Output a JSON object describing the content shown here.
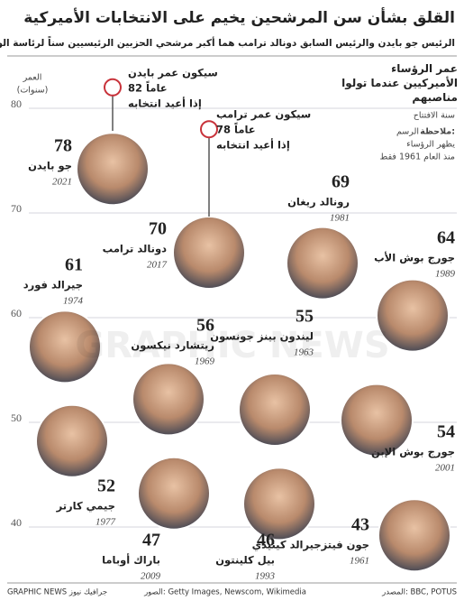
{
  "chart_data": {
    "type": "portrait-dots",
    "title": "القلق بشأن سن المرشحين يخيم على الانتخابات الأميركية",
    "subtitle": "الرئيس جو بايدن والرئيس السابق دونالد ترامب هما أكبر مرشحي الحزبين الرئيسيين سناً لرئاسة الولايات المتحدة",
    "y_label": "العمر",
    "y_unit": "(سنوات)",
    "legend_title": "عمر الرؤساء الأميركيين عندما تولوا مناصبهم",
    "legend_subtitle": "سنة الافتتاح",
    "note": [
      "ملاحظة:",
      "الرسم",
      "يظهر الرؤساء",
      "منذ العام 1961 فقط"
    ],
    "categories": [
      "جو بايدن",
      "دونالد ترامب",
      "رونالد ريغان",
      "جورج بوش الأب",
      "جيرالد فورد",
      "ريتشارد نيكسون",
      "ليندون بينز جونسون",
      "جورج بوش الإبن",
      "جيمي كارتر",
      "باراك أوباما",
      "بيل كلينتون",
      "جون فيتزجيرالد كينيدي"
    ],
    "values": [
      78,
      70,
      69,
      64,
      61,
      56,
      55,
      54,
      52,
      47,
      46,
      43
    ],
    "years": [
      "2021",
      "2017",
      "1981",
      "1989",
      "1974",
      "1969",
      "1963",
      "2001",
      "1977",
      "2009",
      "1993",
      "1961"
    ],
    "annotations": [
      {
        "text": "سيكون عمر بايدن",
        "value": 82,
        "value_label": "82 عاماً",
        "note": "إذا أعيد انتخابه"
      },
      {
        "text": "سيكون عمر ترامب",
        "value": 78,
        "value_label": "78 عاماً",
        "note": "إذا أعيد انتخابه"
      }
    ],
    "ylim": [
      35,
      82
    ],
    "yticks": [
      40,
      50,
      60,
      70,
      80
    ],
    "watermark": "GRAPHIC NEWS",
    "footer": {
      "brand": "GRAPHIC NEWS جرافيك نيوز",
      "photos": "الصور: Getty Images, Newscom, Wikimedia",
      "source": "المصدر: BBC, POTUS"
    }
  }
}
